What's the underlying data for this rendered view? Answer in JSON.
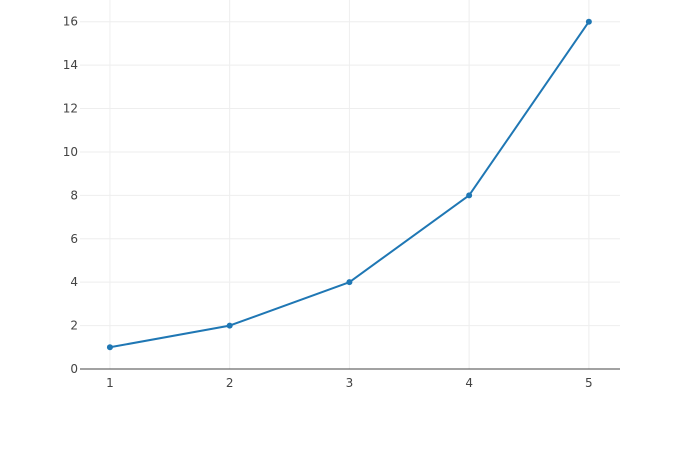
{
  "chart_data": {
    "type": "line",
    "x": [
      1,
      2,
      3,
      4,
      5
    ],
    "series": [
      {
        "values": [
          1,
          2,
          4,
          8,
          16
        ],
        "color": "#1f77b4",
        "mode": "lines+markers"
      }
    ],
    "xlim": [
      0.75,
      5.26
    ],
    "ylim": [
      0,
      17
    ],
    "xticks": [
      1,
      2,
      3,
      4,
      5
    ],
    "yticks": [
      0,
      2,
      4,
      6,
      8,
      10,
      12,
      14,
      16
    ],
    "grid": true,
    "title": "",
    "xlabel": "",
    "ylabel": ""
  }
}
